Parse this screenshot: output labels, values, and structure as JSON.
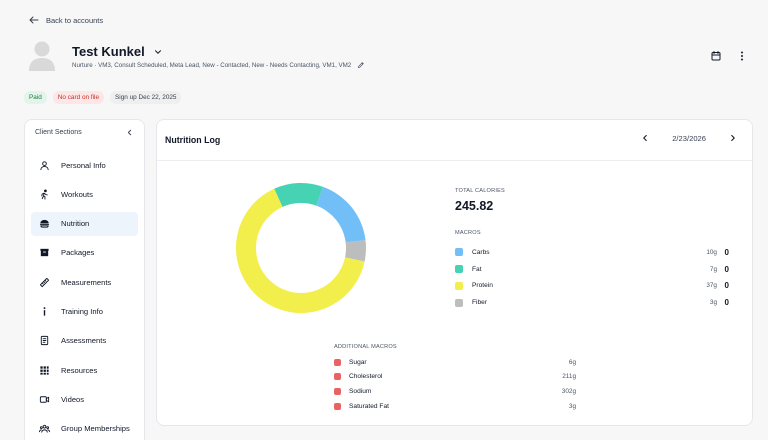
{
  "nav": {
    "back_label": "Back to accounts"
  },
  "client": {
    "name": "Test Kunkel",
    "tags": "Nurture  ·  VM3, Consult Scheduled, Meta Lead, New - Contacted, New - Needs Contacting, VM1, VM2"
  },
  "badges": {
    "paid": "Paid",
    "no_card": "No card on file",
    "signup": "Sign up Dec 22, 2025"
  },
  "sidebar": {
    "title": "Client Sections",
    "items": [
      {
        "label": "Personal Info",
        "icon": "person-icon"
      },
      {
        "label": "Workouts",
        "icon": "running-icon"
      },
      {
        "label": "Nutrition",
        "icon": "burger-icon",
        "active": true
      },
      {
        "label": "Packages",
        "icon": "package-icon"
      },
      {
        "label": "Measurements",
        "icon": "ruler-icon"
      },
      {
        "label": "Training Info",
        "icon": "info-icon"
      },
      {
        "label": "Assessments",
        "icon": "clipboard-icon"
      },
      {
        "label": "Resources",
        "icon": "grid-icon"
      },
      {
        "label": "Videos",
        "icon": "video-icon"
      },
      {
        "label": "Group Memberships",
        "icon": "group-icon"
      }
    ]
  },
  "nutrition": {
    "title": "Nutrition Log",
    "date": "2/23/2026",
    "total_calories_label": "TOTAL CALORIES",
    "total_calories": "245.82",
    "macros_label": "MACROS",
    "macros": [
      {
        "name": "Carbs",
        "grams": "10g",
        "value": "0",
        "color": "#72bff8"
      },
      {
        "name": "Fat",
        "grams": "7g",
        "value": "0",
        "color": "#45d3b4"
      },
      {
        "name": "Protein",
        "grams": "37g",
        "value": "0",
        "color": "#f2ee4c"
      },
      {
        "name": "Fiber",
        "grams": "3g",
        "value": "0",
        "color": "#bdbdbd"
      }
    ],
    "additional_label": "ADDITIONAL MACROS",
    "additional": [
      {
        "name": "Sugar",
        "value": "6g"
      },
      {
        "name": "Cholesterol",
        "value": "211g"
      },
      {
        "name": "Sodium",
        "value": "302g"
      },
      {
        "name": "Saturated Fat",
        "value": "3g"
      }
    ]
  },
  "chart_data": {
    "type": "pie",
    "categories": [
      "Carbs",
      "Fat",
      "Protein",
      "Fiber"
    ],
    "values": [
      10,
      7,
      37,
      3
    ],
    "colors": [
      "#72bff8",
      "#45d3b4",
      "#f2ee4c",
      "#bdbdbd"
    ],
    "title": "",
    "donut": true
  }
}
